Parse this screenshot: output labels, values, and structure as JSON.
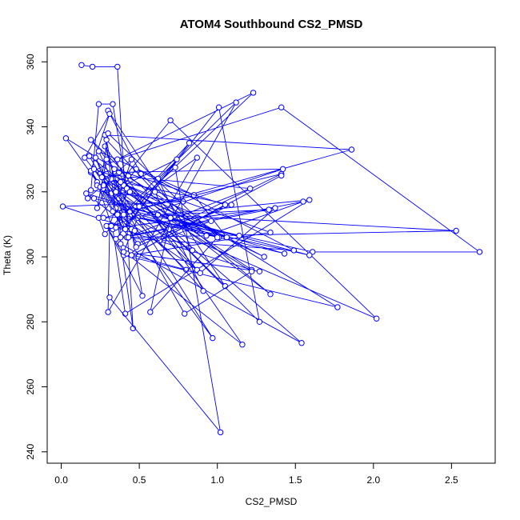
{
  "chart_data": {
    "type": "line",
    "title": "ATOM4 Southbound CS2_PMSD",
    "xlabel": "CS2_PMSD",
    "ylabel": "Theta (K)",
    "xlim": [
      -0.09,
      2.78
    ],
    "ylim": [
      236.5,
      364.5
    ],
    "x_ticks": [
      0.0,
      0.5,
      1.0,
      1.5,
      2.0,
      2.5
    ],
    "x_tick_labels": [
      "0.0",
      "0.5",
      "1.0",
      "1.5",
      "2.0",
      "2.5"
    ],
    "y_ticks": [
      240,
      260,
      280,
      300,
      320,
      340,
      360
    ],
    "y_tick_labels": [
      "240",
      "260",
      "280",
      "300",
      "320",
      "340",
      "360"
    ],
    "grid": false,
    "legend": "none",
    "series": [
      {
        "color": "#0000ff",
        "marker": "open-circle",
        "x": [
          0.13,
          0.2,
          0.36,
          0.46,
          0.28,
          1.86,
          0.44,
          0.27,
          0.32,
          0.43,
          0.37,
          1.61,
          2.68,
          1.41,
          0.36,
          0.37,
          0.38,
          1.54,
          0.33,
          0.97,
          0.19,
          1.23,
          0.56,
          0.87,
          0.3,
          0.31,
          0.45,
          0.17,
          0.21,
          1.59,
          0.33,
          0.87,
          0.19,
          0.43,
          1.34,
          0.18,
          0.32,
          0.7,
          2.02,
          0.69,
          0.28,
          0.41,
          0.82,
          0.28,
          0.24,
          0.48,
          1.49,
          0.38,
          1.55,
          0.93,
          0.51,
          0.3,
          1.05,
          0.4,
          0.74,
          0.44,
          0.15,
          0.31,
          0.19,
          0.49,
          1.41,
          0.27,
          1.33,
          0.35,
          1.01,
          1.27,
          0.42,
          0.33,
          0.24,
          0.19,
          0.78,
          0.01,
          0.45,
          0.52,
          0.29,
          0.4,
          1.77,
          0.03,
          0.23,
          0.33,
          0.41,
          1.59,
          0.62,
          2.53,
          0.42,
          1.21,
          0.25,
          0.96,
          0.63,
          1.12,
          0.62,
          0.84,
          0.35,
          1.01,
          0.5,
          0.23,
          0.43,
          0.25,
          0.8,
          0.42,
          1.16,
          0.28,
          0.48,
          1.09,
          0.38,
          1.3,
          0.29,
          0.89,
          1.37,
          0.35,
          1.22,
          0.29,
          0.44,
          1.06,
          0.85,
          0.24,
          0.32,
          0.27,
          0.37,
          1.42,
          0.32,
          0.47,
          0.16,
          1.43,
          0.49,
          0.4,
          1.27,
          0.47,
          1.41
        ],
        "y": [
          359,
          358.5,
          358.5,
          278,
          337.5,
          333,
          314,
          321,
          319,
          320,
          315,
          301.5,
          301.5,
          346,
          330,
          318,
          304,
          273.5,
          324,
          275,
          326,
          350.5,
          320,
          330.5,
          283,
          309.5,
          330,
          318,
          318,
          300.5,
          314,
          296,
          336,
          325,
          288.5,
          331,
          319.5,
          342,
          281,
          308.5,
          323.5,
          308.5,
          335,
          307,
          312,
          327,
          302,
          306,
          317,
          306.5,
          325.5,
          345,
          291,
          322,
          330,
          312.5,
          330.5,
          344,
          326.5,
          304,
          325.5,
          312,
          314.5,
          305.5,
          346,
          280,
          321,
          347,
          347,
          320.5,
          317,
          315.5,
          308.5,
          288,
          309.5,
          300.5,
          284.5,
          336.5,
          323,
          308.5,
          282.5,
          317.5,
          313,
          308,
          306,
          321,
          325.5,
          311,
          305,
          347.5,
          324,
          302,
          315,
          306,
          315.5,
          322,
          306,
          321.5,
          296,
          301,
          273,
          334,
          303,
          316,
          323,
          300,
          323.5,
          295,
          315,
          309,
          296,
          325.5,
          320,
          306,
          319,
          332.5,
          324,
          322,
          326,
          327,
          309.5,
          308,
          319.5,
          301,
          312,
          301.5,
          295.5,
          301,
          325
        ]
      },
      {
        "color": "#0000ff",
        "marker": "open-circle",
        "x": [
          0.29,
          0.23,
          0.34,
          1.05,
          0.45,
          1.34,
          0.21,
          0.91,
          0.6,
          0.29,
          0.35,
          0.79,
          1.22,
          0.26,
          0.3,
          1.0,
          0.57,
          0.7,
          1.14,
          0.36,
          0.22,
          0.4,
          0.73,
          1.02,
          0.31
        ],
        "y": [
          330,
          315,
          327,
          316,
          300.5,
          307.5,
          327,
          289.5,
          320,
          336,
          320,
          282.5,
          295.5,
          324.5,
          338,
          306,
          283,
          312,
          306.5,
          313,
          330.5,
          313,
          327.5,
          246,
          287.5
        ]
      }
    ]
  }
}
